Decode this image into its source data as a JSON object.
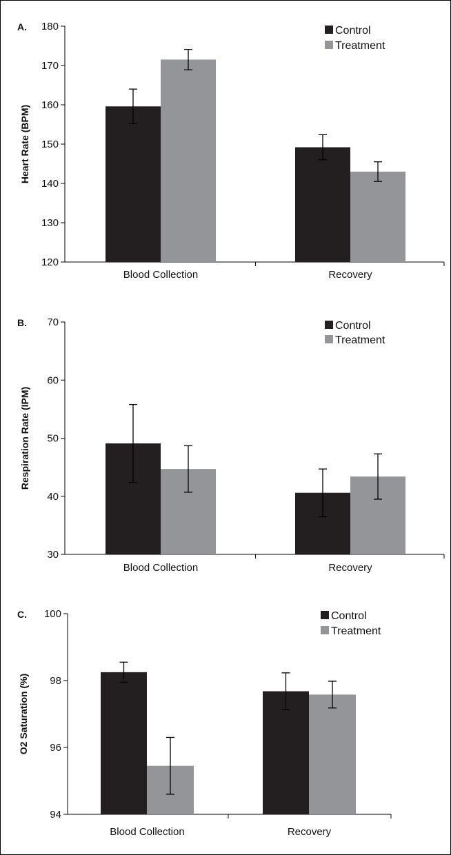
{
  "colors": {
    "control": "#231f20",
    "treatment": "#939598",
    "axis": "#000000"
  },
  "chart_data": [
    {
      "type": "bar",
      "panel_label": "A.",
      "ylabel": "Heart Rate (BPM)",
      "xlabel": "",
      "categories": [
        "Blood Collection",
        "Recovery"
      ],
      "ylim": [
        120,
        180
      ],
      "yticks": [
        120,
        130,
        140,
        150,
        160,
        170,
        180
      ],
      "legend_position": "top-right",
      "series": [
        {
          "name": "Control",
          "values": [
            159.6,
            149.2
          ],
          "errors": [
            4.4,
            3.2
          ]
        },
        {
          "name": "Treatment",
          "values": [
            171.5,
            143.0
          ],
          "errors": [
            2.6,
            2.5
          ]
        }
      ]
    },
    {
      "type": "bar",
      "panel_label": "B.",
      "ylabel": "Respiration Rate (IPM)",
      "xlabel": "",
      "categories": [
        "Blood Collection",
        "Recovery"
      ],
      "ylim": [
        30,
        70
      ],
      "yticks": [
        30,
        40,
        50,
        60,
        70
      ],
      "legend_position": "top-right",
      "series": [
        {
          "name": "Control",
          "values": [
            49.1,
            40.6
          ],
          "errors": [
            6.7,
            4.1
          ]
        },
        {
          "name": "Treatment",
          "values": [
            44.7,
            43.4
          ],
          "errors": [
            4.0,
            3.9
          ]
        }
      ]
    },
    {
      "type": "bar",
      "panel_label": "C.",
      "ylabel": "O2 Saturation (%)",
      "xlabel": "",
      "categories": [
        "Blood Collection",
        "Recovery"
      ],
      "ylim": [
        94,
        100
      ],
      "yticks": [
        94,
        96,
        98,
        100
      ],
      "legend_position": "top-right",
      "series": [
        {
          "name": "Control",
          "values": [
            98.25,
            97.68
          ],
          "errors": [
            0.3,
            0.55
          ]
        },
        {
          "name": "Treatment",
          "values": [
            95.45,
            97.58
          ],
          "errors": [
            0.85,
            0.4
          ]
        }
      ]
    }
  ]
}
